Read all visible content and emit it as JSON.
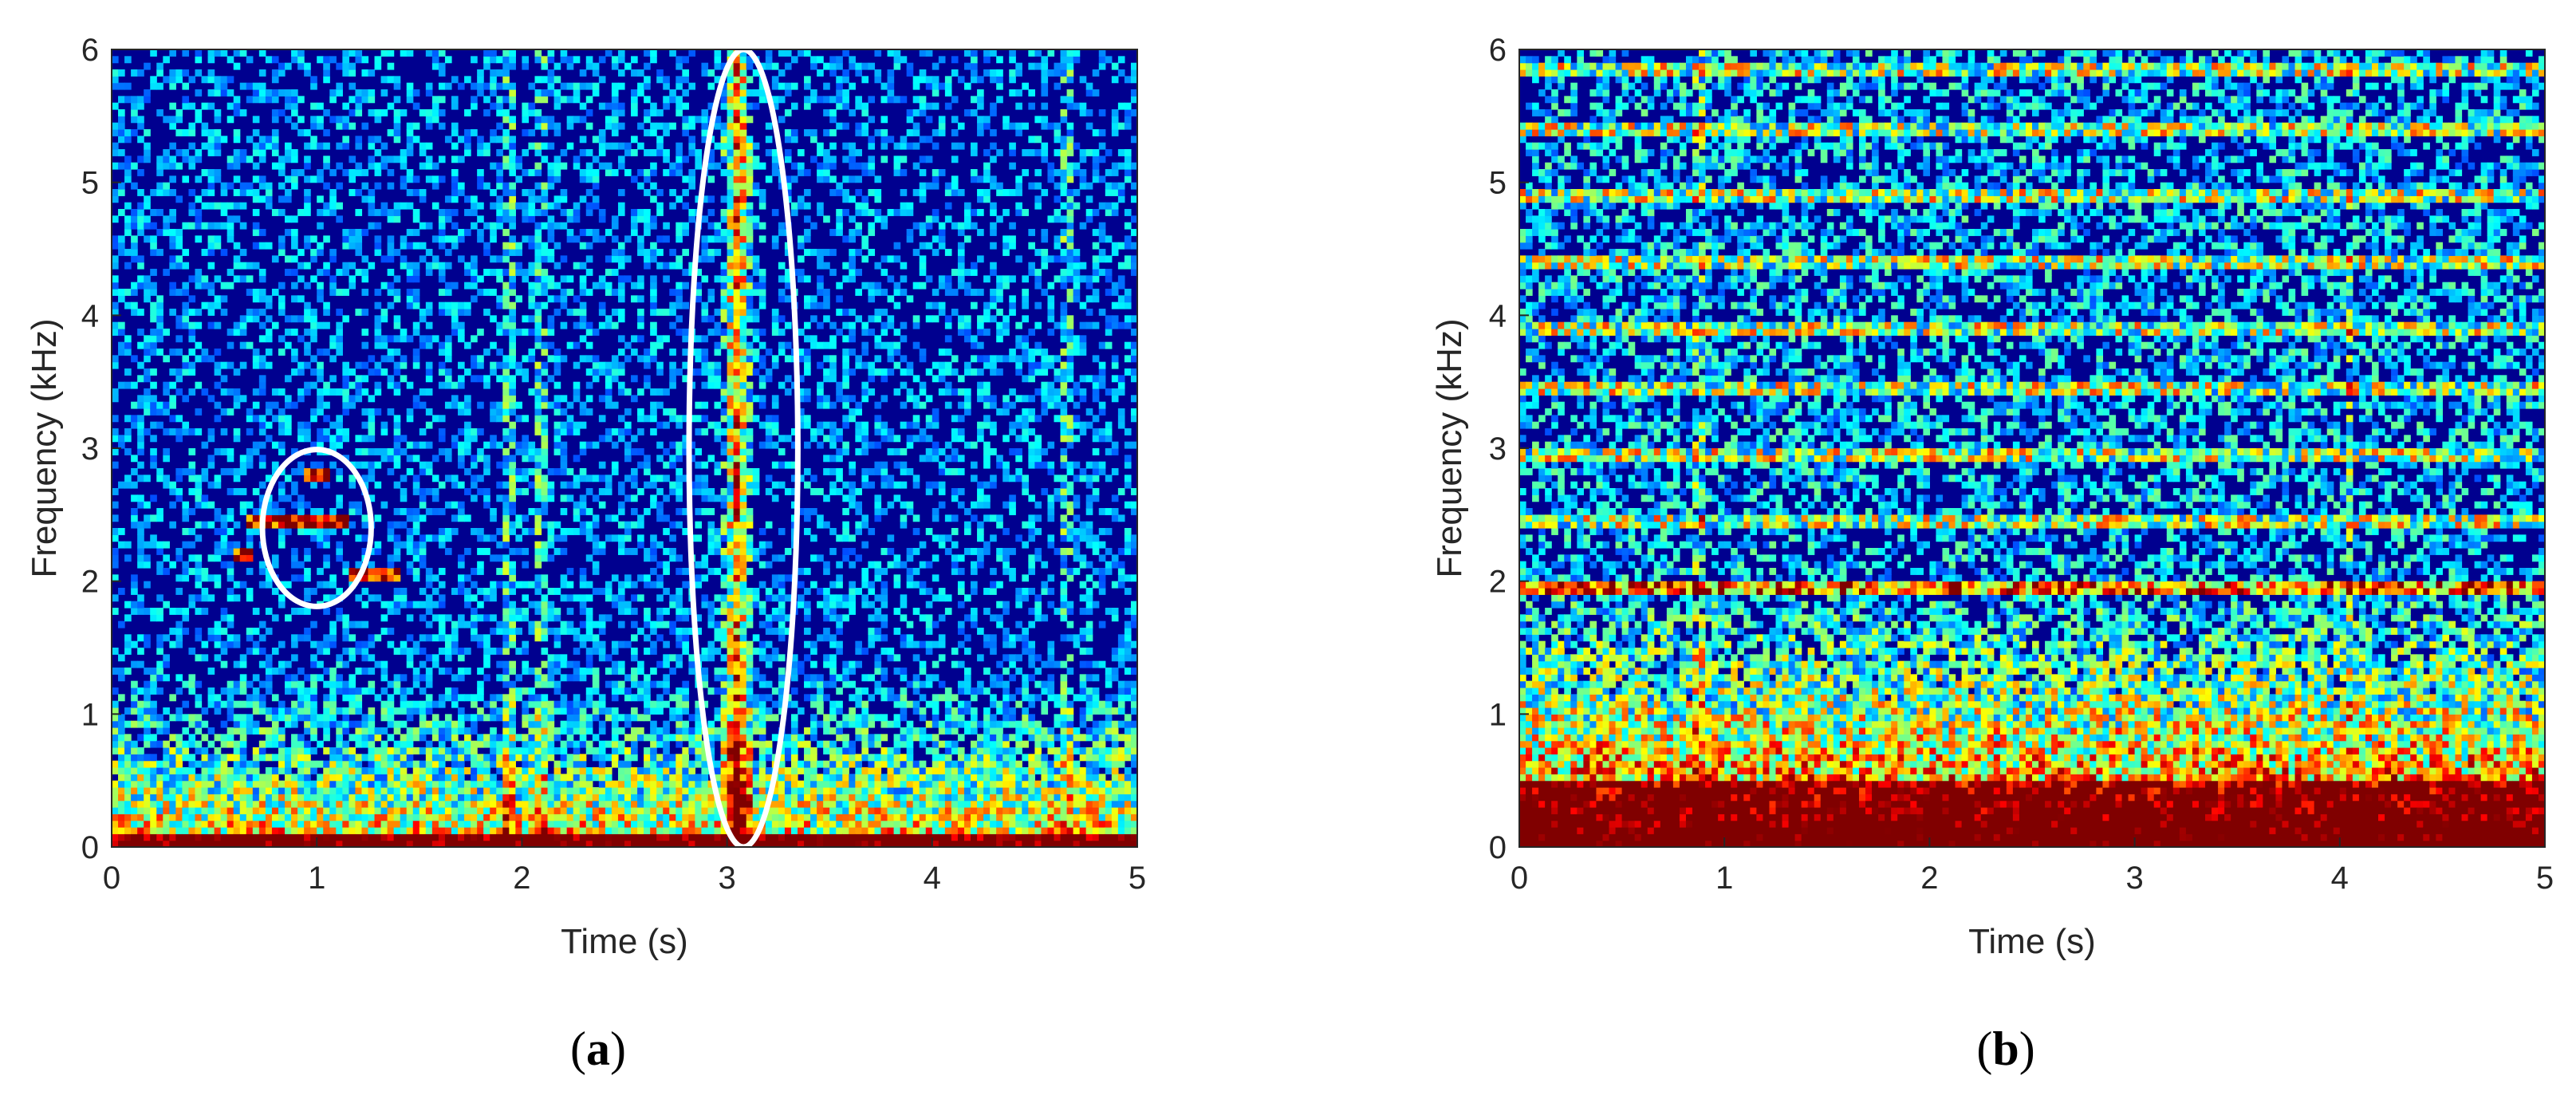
{
  "chart_data": [
    {
      "type": "heatmap",
      "panel_caption": "a",
      "title": "",
      "xlabel": "Time (s)",
      "ylabel": "Frequency (kHz)",
      "xlim": [
        0,
        5
      ],
      "ylim": [
        0,
        6
      ],
      "x_ticks": [
        "0",
        "1",
        "2",
        "3",
        "4",
        "5"
      ],
      "y_ticks": [
        "0",
        "1",
        "2",
        "3",
        "4",
        "5",
        "6"
      ],
      "colormap": "jet",
      "grid": false,
      "description_values": {
        "low_freq_energy_band_khz": [
          0,
          1.5
        ],
        "broadband_transient_time_s": 3.05,
        "tonal_segments": [
          {
            "t_start": 0.65,
            "t_end": 1.15,
            "freq_khz": 2.45
          },
          {
            "t_start": 0.93,
            "t_end": 1.05,
            "freq_khz": 2.8
          },
          {
            "t_start": 0.6,
            "t_end": 0.7,
            "freq_khz": 2.2
          },
          {
            "t_start": 1.15,
            "t_end": 1.4,
            "freq_khz": 2.05
          }
        ]
      },
      "annotations": [
        {
          "shape": "ellipse",
          "center": [
            1.0,
            2.4
          ],
          "radii": [
            0.53,
            0.72
          ]
        },
        {
          "shape": "ellipse",
          "center": [
            3.08,
            3.0
          ],
          "radii": [
            0.53,
            3.0
          ]
        }
      ]
    },
    {
      "type": "heatmap",
      "panel_caption": "b",
      "title": "",
      "xlabel": "Time (s)",
      "ylabel": "Frequency (kHz)",
      "xlim": [
        0,
        5
      ],
      "ylim": [
        0,
        6
      ],
      "x_ticks": [
        "0",
        "1",
        "2",
        "3",
        "4",
        "5"
      ],
      "y_ticks": [
        "0",
        "1",
        "2",
        "3",
        "4",
        "5",
        "6"
      ],
      "colormap": "jet",
      "grid": false,
      "description_values": {
        "low_freq_energy_band_khz": [
          0,
          2
        ],
        "harmonic_lines_khz": [
          1.95,
          2.45,
          2.95,
          3.45,
          3.9,
          4.4,
          4.9,
          5.4,
          5.85
        ]
      }
    }
  ],
  "colors": {
    "background_dark_blue": "#00008f",
    "annotation_ellipse": "#ffffff"
  }
}
